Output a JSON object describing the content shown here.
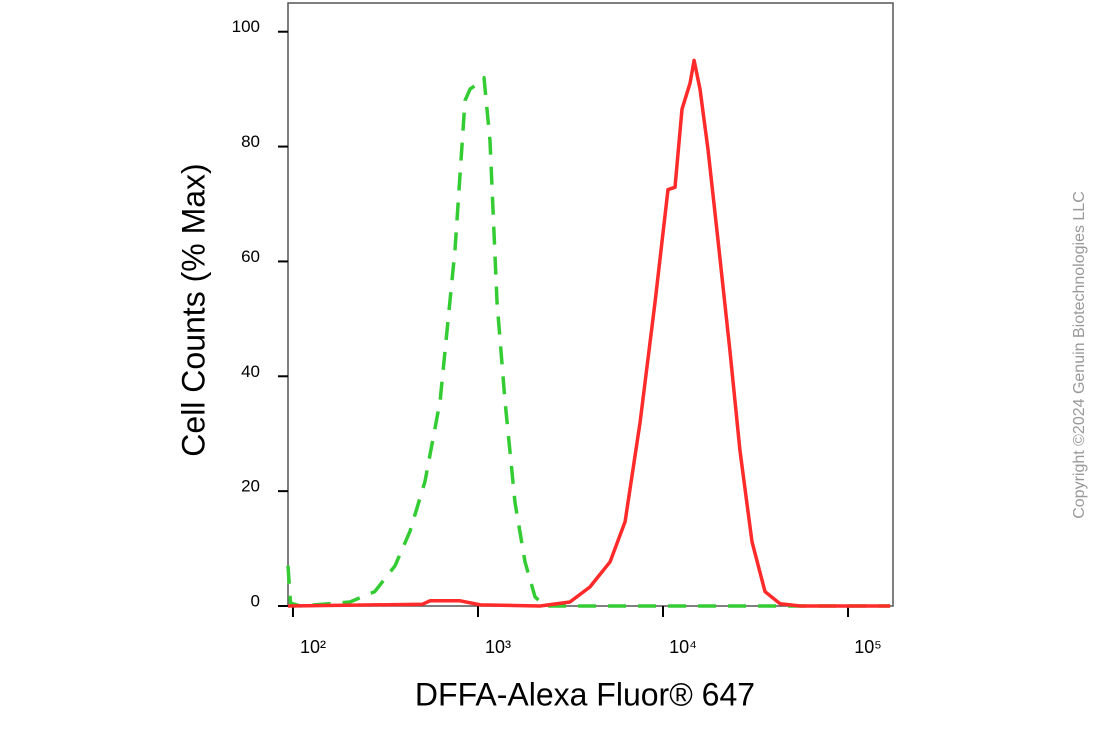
{
  "chart_data": {
    "type": "line",
    "xlabel": "DFFA-Alexa Fluor® 647",
    "ylabel": "Cell Counts (% Max)",
    "annotation": "Copyright ©2024 Genuin Biotechnologies LLC",
    "xscale": "log",
    "xlim": [
      94,
      175000
    ],
    "ylim": [
      0,
      105
    ],
    "xticks": [
      {
        "value": 100,
        "label": "10²"
      },
      {
        "value": 1000,
        "label": "10³"
      },
      {
        "value": 10000,
        "label": "10⁴"
      },
      {
        "value": 100000,
        "label": "10⁵"
      }
    ],
    "yticks": [
      0,
      20,
      40,
      60,
      80,
      100
    ],
    "series": [
      {
        "color": "#33cc33",
        "line_style": "dashed",
        "x": [
          94,
          97,
          110,
          203,
          277,
          356,
          429,
          517,
          624,
          751,
          851,
          906,
          1000,
          1077,
          1161,
          1267,
          1400,
          1585,
          1795,
          2032,
          2300,
          4570,
          168700
        ],
        "values": [
          7,
          0.5,
          0,
          0.7,
          2.5,
          7,
          13,
          21.7,
          35.7,
          62,
          88,
          90,
          91,
          92,
          81,
          53,
          35.7,
          18,
          7.7,
          1.6,
          0,
          0,
          0
        ]
      },
      {
        "color": "#ff2a2a",
        "line_style": "solid",
        "x": [
          94,
          500,
          550,
          800,
          1030,
          2163,
          3140,
          4027,
          5174,
          6237,
          7520,
          9060,
          10640,
          11610,
          12670,
          14000,
          14720,
          15850,
          17500,
          19820,
          23000,
          26060,
          30270,
          35560,
          42870,
          55040,
          168700
        ],
        "values": [
          0,
          0.3,
          0.9,
          0.9,
          0.2,
          0,
          0.7,
          3.3,
          7.7,
          14.7,
          32,
          53,
          72.5,
          72.9,
          86.5,
          91,
          95,
          90,
          79.5,
          63.7,
          44.5,
          27,
          11.2,
          2.5,
          0.4,
          0,
          0
        ]
      }
    ]
  }
}
